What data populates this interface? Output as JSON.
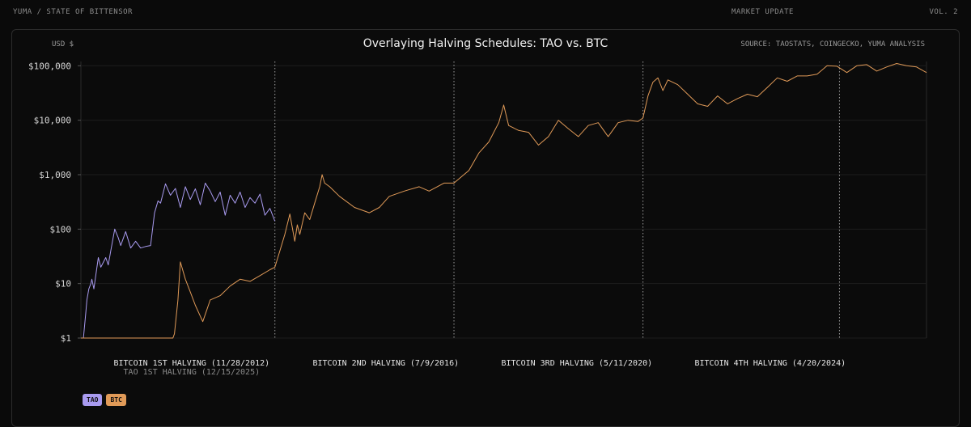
{
  "header": {
    "brand": "YUMA / STATE OF BITTENSOR",
    "section": "MARKET UPDATE",
    "volume": "VOL. 2"
  },
  "colors": {
    "tao": "#a99bf0",
    "btc": "#e09a58",
    "grid": "#1e1e1e",
    "halving_line": "#cfcfcf"
  },
  "chart_data": {
    "type": "line",
    "title": "Overlaying Halving Schedules: TAO vs. BTC",
    "ylabel": "USD $",
    "source": "SOURCE: TAOSTATS, COINGECKO, YUMA ANALYSIS",
    "y_scale": "log",
    "ylim": [
      1,
      120000
    ],
    "y_ticks": [
      {
        "value": 1,
        "label": "$1"
      },
      {
        "value": 10,
        "label": "$10"
      },
      {
        "value": 100,
        "label": "$100"
      },
      {
        "value": 1000,
        "label": "$1,000"
      },
      {
        "value": 10000,
        "label": "$10,000"
      },
      {
        "value": 100000,
        "label": "$100,000"
      }
    ],
    "x_unit": "years from start",
    "xlim": [
      0,
      17
    ],
    "halvings": [
      {
        "x": 3.9,
        "label": "BITCOIN 1ST HALVING (11/28/2012)",
        "sublabel": "TAO 1ST HALVING (12/15/2025)"
      },
      {
        "x": 7.5,
        "label": "BITCOIN 2ND HALVING (7/9/2016)"
      },
      {
        "x": 11.3,
        "label": "BITCOIN 3RD HALVING (5/11/2020)"
      },
      {
        "x": 15.25,
        "label": "BITCOIN 4TH HALVING (4/20/2024)"
      }
    ],
    "grid": true,
    "legend_position": "bottom-left",
    "series": [
      {
        "name": "TAO",
        "x": [
          0,
          0.05,
          0.1,
          0.12,
          0.16,
          0.2,
          0.22,
          0.26,
          0.35,
          0.4,
          0.5,
          0.55,
          0.6,
          0.68,
          0.75,
          0.8,
          0.9,
          1.0,
          1.1,
          1.2,
          1.3,
          1.4,
          1.48,
          1.55,
          1.6,
          1.7,
          1.8,
          1.9,
          2.0,
          2.1,
          2.2,
          2.3,
          2.4,
          2.5,
          2.6,
          2.7,
          2.8,
          2.9,
          3.0,
          3.1,
          3.2,
          3.3,
          3.4,
          3.5,
          3.6,
          3.7,
          3.8,
          3.9
        ],
        "y": [
          1,
          1,
          3,
          5,
          8,
          10,
          12,
          8,
          30,
          20,
          30,
          22,
          40,
          100,
          70,
          50,
          90,
          45,
          60,
          45,
          48,
          50,
          200,
          330,
          300,
          680,
          420,
          560,
          250,
          600,
          350,
          550,
          280,
          700,
          500,
          320,
          480,
          180,
          420,
          300,
          480,
          250,
          380,
          300,
          440,
          180,
          240,
          140
        ]
      },
      {
        "name": "BTC",
        "x": [
          0,
          0.5,
          1.0,
          1.5,
          1.85,
          1.88,
          1.95,
          2.0,
          2.1,
          2.2,
          2.3,
          2.45,
          2.6,
          2.8,
          3.0,
          3.2,
          3.4,
          3.6,
          3.8,
          3.9,
          4.0,
          4.1,
          4.2,
          4.3,
          4.35,
          4.4,
          4.5,
          4.6,
          4.7,
          4.8,
          4.85,
          4.9,
          5.0,
          5.2,
          5.5,
          5.8,
          6.0,
          6.2,
          6.5,
          6.8,
          7.0,
          7.3,
          7.5,
          7.8,
          8.0,
          8.2,
          8.4,
          8.5,
          8.6,
          8.8,
          9.0,
          9.2,
          9.4,
          9.6,
          9.8,
          10.0,
          10.2,
          10.4,
          10.6,
          10.8,
          11.0,
          11.2,
          11.3,
          11.4,
          11.5,
          11.6,
          11.7,
          11.8,
          12.0,
          12.2,
          12.4,
          12.6,
          12.8,
          13.0,
          13.2,
          13.4,
          13.6,
          13.8,
          14.0,
          14.2,
          14.4,
          14.6,
          14.8,
          15.0,
          15.2,
          15.4,
          15.6,
          15.8,
          16.0,
          16.2,
          16.4,
          16.6,
          16.8,
          17.0
        ],
        "y": [
          1,
          1,
          1,
          1,
          1,
          1.2,
          5,
          25,
          12,
          7,
          4,
          2,
          5,
          6,
          9,
          12,
          11,
          14,
          18,
          20,
          40,
          80,
          190,
          60,
          120,
          80,
          200,
          150,
          300,
          600,
          1000,
          700,
          600,
          400,
          250,
          200,
          250,
          400,
          500,
          600,
          500,
          700,
          700,
          1200,
          2500,
          4000,
          9000,
          19000,
          8000,
          6500,
          6000,
          3500,
          5000,
          10000,
          7000,
          5000,
          8000,
          9000,
          5000,
          9000,
          10000,
          9500,
          11000,
          28000,
          50000,
          60000,
          35000,
          55000,
          45000,
          30000,
          20000,
          18000,
          28000,
          20000,
          25000,
          30000,
          27000,
          40000,
          60000,
          52000,
          65000,
          65000,
          70000,
          100000,
          98000,
          75000,
          100000,
          105000,
          80000,
          95000,
          110000,
          100000,
          95000,
          75000
        ]
      }
    ]
  }
}
